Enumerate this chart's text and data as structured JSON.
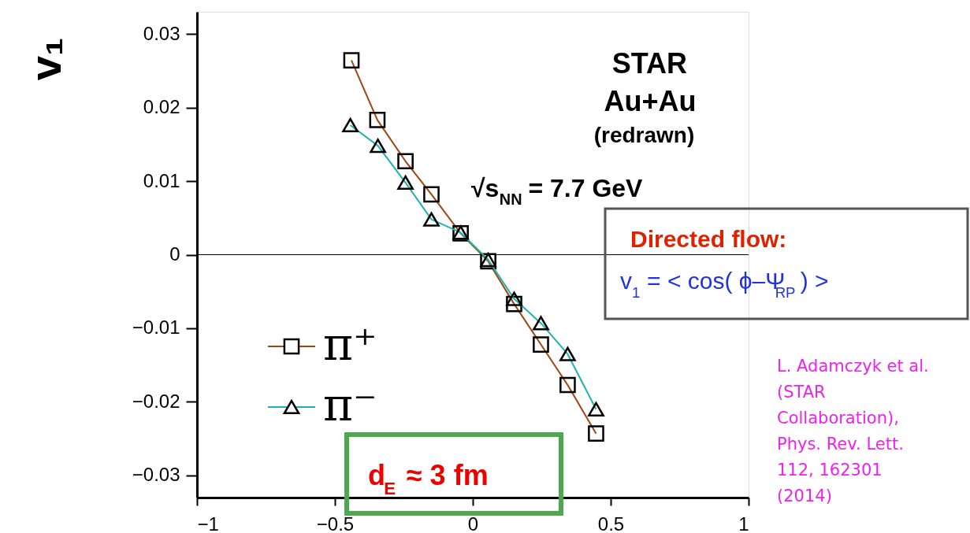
{
  "chart_data": {
    "type": "line",
    "ylabel": "v₁",
    "xlim": [
      -1,
      1
    ],
    "xticks": [
      {
        "value": -1,
        "label": "−1"
      },
      {
        "value": -0.5,
        "label": "−0.5"
      },
      0,
      0.5,
      1
    ],
    "ylim": [
      -0.033,
      0.033
    ],
    "yticks": [
      {
        "value": -0.03,
        "label": "−0.03"
      },
      {
        "value": -0.02,
        "label": "−0.02"
      },
      {
        "value": -0.01,
        "label": "−0.01"
      },
      0,
      0.01,
      0.02,
      0.03
    ],
    "legend": "bottom left",
    "grid": false,
    "ref_lines": [
      {
        "axis": "y",
        "value": 0,
        "color": "#000000"
      }
    ],
    "series": [
      {
        "name": "π⁺",
        "color": "#a0450f",
        "marker": "square",
        "x": [
          -0.44,
          -0.346,
          -0.244,
          -0.15,
          -0.044,
          0.056,
          0.15,
          0.247,
          0.344,
          0.447
        ],
        "values": [
          0.0264,
          0.0183,
          0.0127,
          0.0082,
          0.0029,
          -0.0009,
          -0.0067,
          -0.0122,
          -0.0177,
          -0.0243
        ]
      },
      {
        "name": "π⁻",
        "color": "#20b2b0",
        "marker": "triangle",
        "x": [
          -0.444,
          -0.344,
          -0.244,
          -0.15,
          -0.044,
          0.056,
          0.15,
          0.247,
          0.344,
          0.447
        ],
        "values": [
          0.0176,
          0.0148,
          0.0098,
          0.0048,
          0.003,
          -0.0007,
          -0.006,
          -0.0093,
          -0.0135,
          -0.021
        ]
      }
    ],
    "annotations": [
      "STAR",
      "Au+Au",
      "(redrawn)",
      "√s$_{NN}$ = 7.7 GeV",
      "Directed flow:",
      "v$_{1}$ = < cos( ϕ–Ψ$_{RP}$ ) >",
      "d$_{E}$ ≈ 3 fm",
      "L. Adamczyk et al.\n(STAR\nCollaboration),\nPhys. Rev. Lett.\n112, 162301\n(2014)"
    ]
  }
}
